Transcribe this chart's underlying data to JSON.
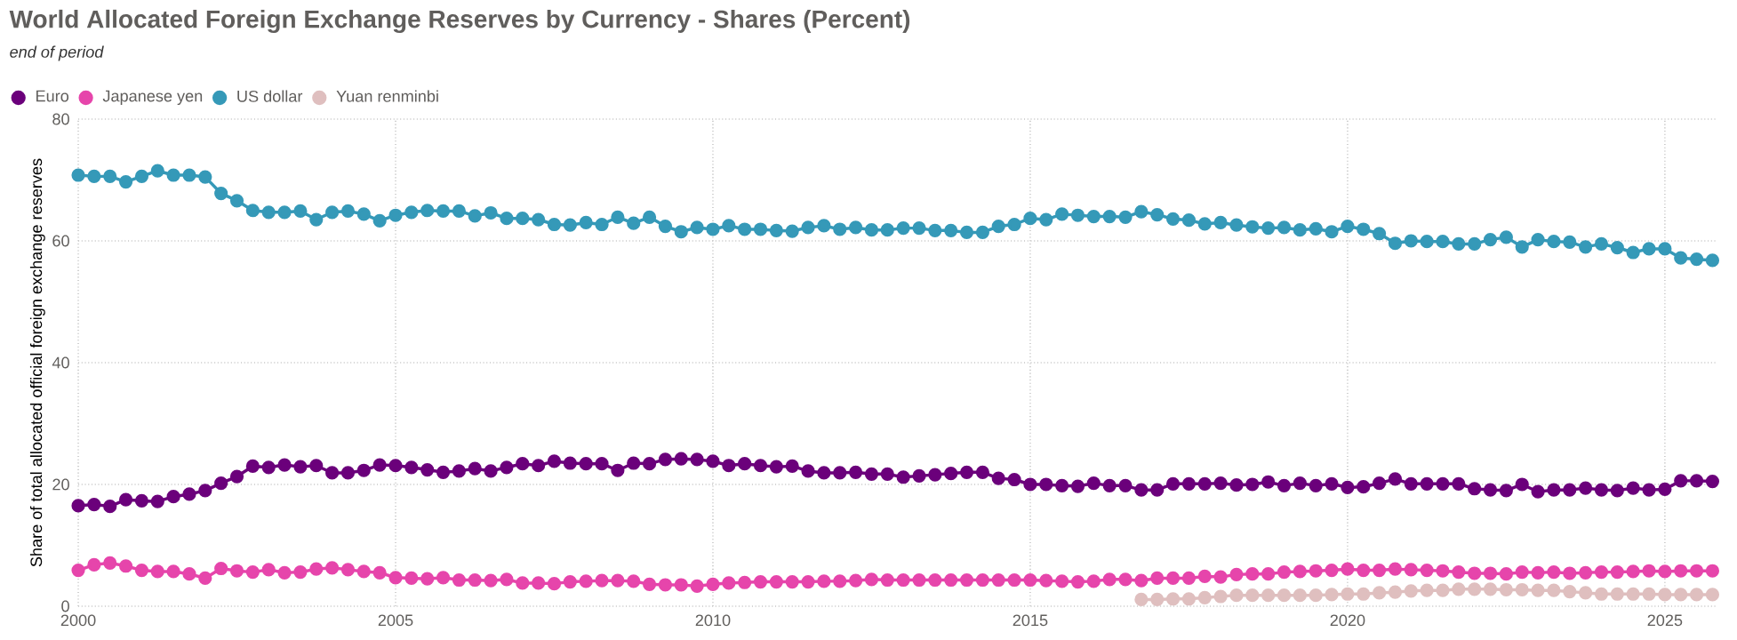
{
  "chart_data": {
    "type": "line",
    "title": "World Allocated Foreign Exchange Reserves by Currency - Shares (Percent)",
    "subtitle": "end of period",
    "ylabel": "Share of total allocated official foreign exchange reserves",
    "x": [
      2000,
      2000.25,
      2000.5,
      2000.75,
      2001,
      2001.25,
      2001.5,
      2001.75,
      2002,
      2002.25,
      2002.5,
      2002.75,
      2003,
      2003.25,
      2003.5,
      2003.75,
      2004,
      2004.25,
      2004.5,
      2004.75,
      2005,
      2005.25,
      2005.5,
      2005.75,
      2006,
      2006.25,
      2006.5,
      2006.75,
      2007,
      2007.25,
      2007.5,
      2007.75,
      2008,
      2008.25,
      2008.5,
      2008.75,
      2009,
      2009.25,
      2009.5,
      2009.75,
      2010,
      2010.25,
      2010.5,
      2010.75,
      2011,
      2011.25,
      2011.5,
      2011.75,
      2012,
      2012.25,
      2012.5,
      2012.75,
      2013,
      2013.25,
      2013.5,
      2013.75,
      2014,
      2014.25,
      2014.5,
      2014.75,
      2015,
      2015.25,
      2015.5,
      2015.75,
      2016,
      2016.25,
      2016.5,
      2016.75,
      2017,
      2017.25,
      2017.5,
      2017.75,
      2018,
      2018.25,
      2018.5,
      2018.75,
      2019,
      2019.25,
      2019.5,
      2019.75,
      2020,
      2020.25,
      2020.5,
      2020.75,
      2021,
      2021.25,
      2021.5,
      2021.75,
      2022,
      2022.25,
      2022.5,
      2022.75,
      2023,
      2023.25,
      2023.5,
      2023.75,
      2024,
      2024.25,
      2024.5,
      2024.75,
      2025,
      2025.25,
      2025.5,
      2025.75
    ],
    "xlim": [
      2000,
      2025.8
    ],
    "xticks": [
      2000,
      2005,
      2010,
      2015,
      2020,
      2025
    ],
    "ylim": [
      0,
      80
    ],
    "yticks": [
      0,
      20,
      40,
      60,
      80
    ],
    "grid": true,
    "legend": "top left",
    "marker": "circle",
    "line_style": "solid",
    "series": [
      {
        "name": "Euro",
        "color": "#6b007b",
        "values": [
          16.5,
          16.7,
          16.4,
          17.5,
          17.3,
          17.2,
          18.0,
          18.4,
          19.0,
          20.2,
          21.3,
          23.0,
          22.8,
          23.2,
          22.9,
          23.1,
          21.9,
          21.9,
          22.3,
          23.2,
          23.1,
          22.8,
          22.4,
          22.0,
          22.2,
          22.6,
          22.2,
          22.8,
          23.4,
          23.1,
          23.8,
          23.5,
          23.4,
          23.4,
          22.3,
          23.5,
          23.4,
          24.1,
          24.2,
          24.1,
          23.8,
          23.1,
          23.4,
          23.1,
          22.9,
          23.0,
          22.2,
          21.9,
          21.9,
          22.0,
          21.7,
          21.7,
          21.2,
          21.4,
          21.6,
          21.8,
          22.0,
          22.0,
          21.0,
          20.8,
          20.0,
          20.0,
          19.8,
          19.7,
          20.2,
          19.8,
          19.8,
          19.1,
          19.1,
          20.1,
          20.1,
          20.1,
          20.2,
          19.9,
          20.0,
          20.4,
          19.8,
          20.2,
          19.8,
          20.1,
          19.5,
          19.6,
          20.2,
          20.9,
          20.1,
          20.1,
          20.1,
          20.1,
          19.3,
          19.1,
          19.0,
          20.0,
          18.8,
          19.1,
          19.1,
          19.4,
          19.1,
          19.0,
          19.4,
          19.1,
          19.2,
          20.6,
          20.6,
          20.5
        ]
      },
      {
        "name": "Japanese yen",
        "color": "#e645ab",
        "values": [
          5.9,
          6.8,
          7.1,
          6.6,
          5.9,
          5.7,
          5.7,
          5.3,
          4.6,
          6.2,
          5.8,
          5.6,
          6.0,
          5.5,
          5.6,
          6.1,
          6.3,
          6.0,
          5.7,
          5.5,
          4.7,
          4.6,
          4.5,
          4.7,
          4.3,
          4.3,
          4.2,
          4.4,
          3.8,
          3.8,
          3.7,
          4.0,
          4.1,
          4.2,
          4.2,
          4.1,
          3.6,
          3.5,
          3.5,
          3.3,
          3.6,
          3.8,
          3.9,
          4.0,
          4.0,
          4.0,
          4.0,
          4.1,
          4.1,
          4.2,
          4.4,
          4.3,
          4.3,
          4.3,
          4.3,
          4.3,
          4.3,
          4.3,
          4.3,
          4.3,
          4.3,
          4.2,
          4.1,
          4.0,
          4.1,
          4.4,
          4.4,
          4.2,
          4.6,
          4.6,
          4.6,
          4.9,
          4.8,
          5.2,
          5.3,
          5.3,
          5.6,
          5.7,
          5.8,
          5.9,
          6.1,
          5.9,
          5.9,
          6.1,
          6.0,
          5.9,
          5.8,
          5.6,
          5.4,
          5.4,
          5.3,
          5.6,
          5.5,
          5.6,
          5.4,
          5.5,
          5.6,
          5.6,
          5.7,
          5.8,
          5.7,
          5.8,
          5.8,
          5.8
        ]
      },
      {
        "name": "US dollar",
        "color": "#3599b8",
        "values": [
          70.8,
          70.6,
          70.6,
          69.7,
          70.6,
          71.5,
          70.8,
          70.8,
          70.5,
          67.8,
          66.6,
          65.0,
          64.7,
          64.7,
          64.9,
          63.5,
          64.7,
          64.9,
          64.4,
          63.3,
          64.2,
          64.7,
          65.0,
          64.9,
          64.9,
          64.1,
          64.6,
          63.7,
          63.7,
          63.5,
          62.7,
          62.6,
          63.0,
          62.7,
          63.9,
          62.9,
          63.9,
          62.4,
          61.5,
          62.2,
          61.9,
          62.5,
          61.9,
          61.9,
          61.7,
          61.6,
          62.2,
          62.5,
          61.9,
          62.2,
          61.8,
          61.8,
          62.1,
          62.1,
          61.7,
          61.7,
          61.4,
          61.4,
          62.4,
          62.7,
          63.7,
          63.5,
          64.4,
          64.2,
          64.0,
          64.0,
          63.9,
          64.8,
          64.3,
          63.6,
          63.4,
          62.8,
          63.0,
          62.6,
          62.3,
          62.1,
          62.2,
          61.8,
          62.0,
          61.5,
          62.4,
          61.9,
          61.2,
          59.6,
          60.0,
          59.9,
          59.9,
          59.5,
          59.5,
          60.2,
          60.6,
          59.0,
          60.2,
          59.9,
          59.8,
          59.0,
          59.5,
          58.9,
          58.1,
          58.7,
          58.7,
          57.2,
          57.0,
          56.8
        ]
      },
      {
        "name": "Yuan renminbi",
        "color": "#dfbfbf",
        "values": [
          null,
          null,
          null,
          null,
          null,
          null,
          null,
          null,
          null,
          null,
          null,
          null,
          null,
          null,
          null,
          null,
          null,
          null,
          null,
          null,
          null,
          null,
          null,
          null,
          null,
          null,
          null,
          null,
          null,
          null,
          null,
          null,
          null,
          null,
          null,
          null,
          null,
          null,
          null,
          null,
          null,
          null,
          null,
          null,
          null,
          null,
          null,
          null,
          null,
          null,
          null,
          null,
          null,
          null,
          null,
          null,
          null,
          null,
          null,
          null,
          null,
          null,
          null,
          null,
          null,
          null,
          null,
          1.1,
          1.1,
          1.2,
          1.2,
          1.4,
          1.6,
          1.8,
          1.8,
          1.8,
          1.8,
          1.8,
          1.8,
          1.9,
          2.0,
          2.0,
          2.2,
          2.3,
          2.5,
          2.6,
          2.6,
          2.8,
          2.8,
          2.8,
          2.7,
          2.7,
          2.6,
          2.6,
          2.4,
          2.2,
          2.0,
          2.0,
          2.0,
          2.0,
          1.9,
          1.9,
          1.9,
          1.9
        ]
      }
    ]
  }
}
